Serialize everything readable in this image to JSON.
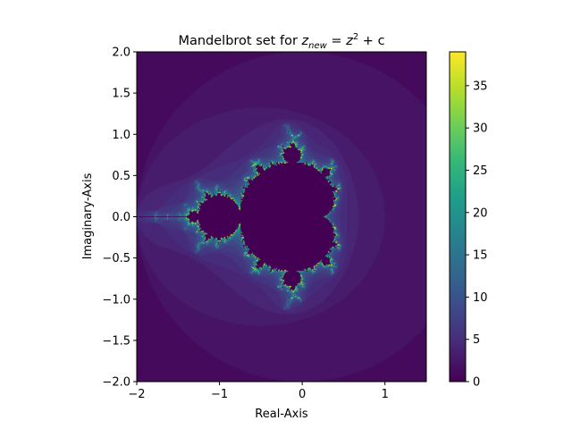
{
  "chart_data": {
    "type": "heatmap",
    "title": "Mandelbrot set for z_new = z^2 + c",
    "title_parts": {
      "prefix": "Mandelbrot set for ",
      "z": "z",
      "sub": "new",
      "eq": " = ",
      "sq": "2",
      "plus_c": " + c"
    },
    "xlabel": "Real-Axis",
    "ylabel": "Imaginary-Axis",
    "xlim": [
      -2.0,
      1.5
    ],
    "ylim": [
      -2.0,
      2.0
    ],
    "x_ticks": [
      {
        "value": -2,
        "label": "−2"
      },
      {
        "value": -1,
        "label": "−1"
      },
      {
        "value": 0,
        "label": "0"
      },
      {
        "value": 1,
        "label": "1"
      }
    ],
    "y_ticks": [
      {
        "value": -2.0,
        "label": "−2.0"
      },
      {
        "value": -1.5,
        "label": "−1.5"
      },
      {
        "value": -1.0,
        "label": "−1.0"
      },
      {
        "value": -0.5,
        "label": "−0.5"
      },
      {
        "value": 0.0,
        "label": "0.0"
      },
      {
        "value": 0.5,
        "label": "0.5"
      },
      {
        "value": 1.0,
        "label": "1.0"
      },
      {
        "value": 1.5,
        "label": "1.5"
      },
      {
        "value": 2.0,
        "label": "2.0"
      }
    ],
    "colorbar": {
      "range": [
        0,
        39
      ],
      "ticks": [
        {
          "value": 0,
          "label": "0"
        },
        {
          "value": 5,
          "label": "5"
        },
        {
          "value": 10,
          "label": "10"
        },
        {
          "value": 15,
          "label": "15"
        },
        {
          "value": 20,
          "label": "20"
        },
        {
          "value": 25,
          "label": "25"
        },
        {
          "value": 30,
          "label": "30"
        },
        {
          "value": 35,
          "label": "35"
        }
      ]
    },
    "colormap": "viridis",
    "max_iterations": 40,
    "grid": false,
    "legend": "none"
  }
}
